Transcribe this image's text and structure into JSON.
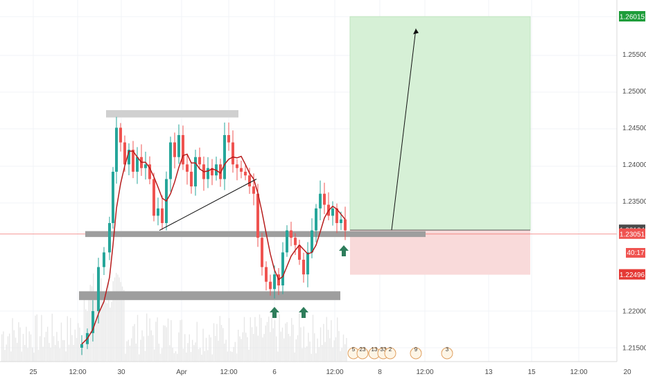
{
  "chart_data": {
    "type": "candlestick",
    "symbol_hint": "GBPUSD",
    "x_ticks": [
      "25",
      "12:00",
      "30",
      "Apr",
      "12:00",
      "6",
      "12:00",
      "8",
      "12:00",
      "13",
      "15",
      "12:00",
      "20"
    ],
    "y_ticks": [
      "1.26015",
      "1.25500",
      "1.25000",
      "1.24500",
      "1.24000",
      "1.23500",
      "1.23104",
      "1.23051",
      "1.22496",
      "1.22000",
      "1.21500"
    ],
    "ylim": [
      1.2125,
      1.2625
    ],
    "price_tags": [
      {
        "label": "1.26015",
        "value": 1.26015,
        "color": "#1e9d3a"
      },
      {
        "label": "1.23104",
        "value": 1.23104,
        "color": "#4a4a4a"
      },
      {
        "label": "1.23051",
        "value": 1.23051,
        "color": "#ef5350"
      },
      {
        "label": "40:17",
        "value": 1.2283,
        "color": "#ef5350"
      },
      {
        "label": "1.22496",
        "value": 1.22496,
        "color": "#e53935"
      }
    ],
    "current_price": 1.23051,
    "position": {
      "type": "long",
      "entry": 1.23104,
      "target": 1.26015,
      "stop": 1.22496,
      "profit_color": "#d6f0d6",
      "loss_color": "#f9dada"
    },
    "zones": [
      {
        "name": "top-resistance",
        "top": 1.2474,
        "bottom": 1.2464,
        "color": "#d0d0d0"
      },
      {
        "name": "middle-support",
        "top": 1.2309,
        "bottom": 1.2301,
        "color": "#9e9e9e"
      },
      {
        "name": "bottom-support",
        "top": 1.2227,
        "bottom": 1.2215,
        "color": "#9e9e9e"
      }
    ],
    "trendline": {
      "from": {
        "x": 230,
        "y": 1.231
      },
      "to": {
        "x": 370,
        "y": 1.238
      }
    },
    "arrow_forecast": {
      "from": {
        "x": 565,
        "y": 1.23104
      },
      "to": {
        "x": 600,
        "y": 1.2585
      }
    },
    "up_arrows": [
      396,
      438,
      496
    ],
    "ma_color": "#b71c1c",
    "candle_up_color": "#26a69a",
    "candle_down_color": "#ef5350",
    "events": [
      {
        "label": "5",
        "x": 510
      },
      {
        "label": "23",
        "x": 523
      },
      {
        "label": "13",
        "x": 540
      },
      {
        "label": "33",
        "x": 553
      },
      {
        "label": "2",
        "x": 563
      },
      {
        "label": "9",
        "x": 600
      },
      {
        "label": "3",
        "x": 645
      }
    ]
  }
}
